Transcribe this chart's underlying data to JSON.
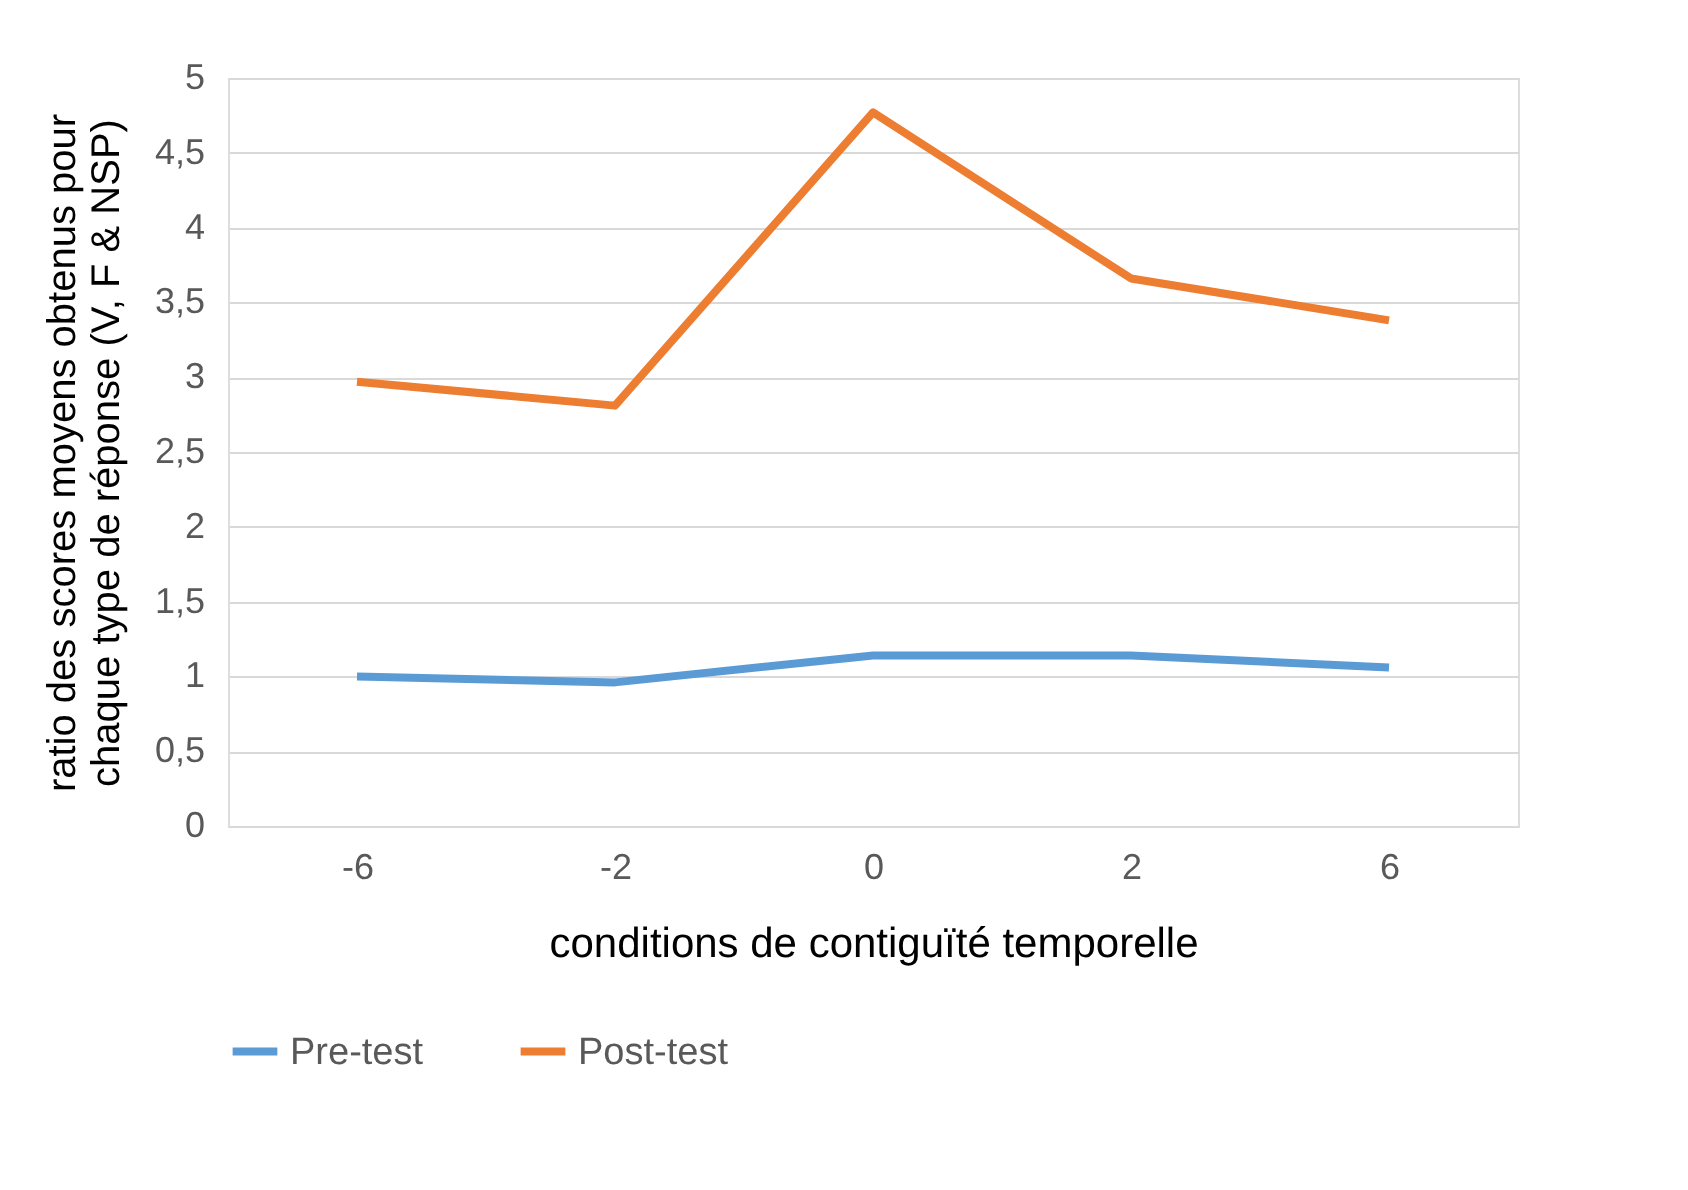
{
  "chart_data": {
    "type": "line",
    "categories": [
      "-6",
      "-2",
      "0",
      "2",
      "6"
    ],
    "series": [
      {
        "name": "Pre-test",
        "color": "#5b9bd5",
        "values": [
          1.0,
          0.96,
          1.14,
          1.14,
          1.06
        ]
      },
      {
        "name": "Post-test",
        "color": "#ed7d31",
        "values": [
          2.97,
          2.81,
          4.77,
          3.66,
          3.38
        ]
      }
    ],
    "xlabel": "conditions de contiguïté temporelle",
    "ylabel": "ratio des scores moyens obtenus pour chaque type de réponse (V, F & NSP)",
    "ylim": [
      0,
      5
    ],
    "yticks": [
      0,
      {
        "value": 0.5,
        "label": "0,5"
      },
      1,
      {
        "value": 1.5,
        "label": "1,5"
      },
      2,
      {
        "value": 2.5,
        "label": "2,5"
      },
      3,
      {
        "value": 3.5,
        "label": "3,5"
      },
      4,
      {
        "value": 4.5,
        "label": "4,5"
      },
      5
    ],
    "grid": "y",
    "legend": "bottom",
    "marker": "none",
    "line_style": "solid"
  }
}
